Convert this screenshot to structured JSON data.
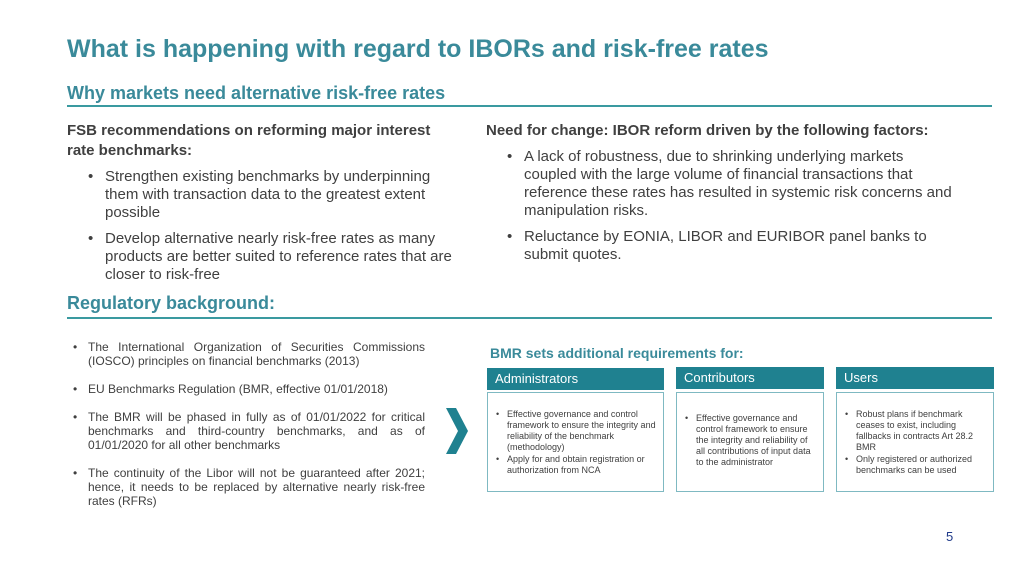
{
  "title": "What is happening with regard to IBORs and risk-free rates",
  "section1": {
    "heading": "Why markets need alternative risk-free rates",
    "left": {
      "heading": "FSB recommendations on reforming major interest rate benchmarks:",
      "bullets": [
        "Strengthen existing benchmarks by underpinning them with transaction data to the greatest extent possible",
        "Develop alternative nearly risk-free rates as many products are better suited to reference rates that are closer to risk-free"
      ]
    },
    "right": {
      "heading": "Need for change: IBOR reform driven by the following factors:",
      "bullets": [
        "A lack of robustness, due to shrinking underlying markets coupled with the large volume of financial transactions that reference these rates has resulted in systemic risk concerns and manipulation risks.",
        "Reluctance by EONIA, LIBOR and EURIBOR panel banks to submit quotes."
      ]
    }
  },
  "section2": {
    "heading": "Regulatory background:",
    "bullets": [
      "The International Organization of Securities Commissions (IOSCO) principles on financial benchmarks (2013)",
      "EU Benchmarks Regulation (BMR, effective 01/01/2018)",
      "The BMR will be phased in fully as of 01/01/2022 for critical benchmarks and third-country benchmarks, and as of 01/01/2020 for all other benchmarks",
      "The continuity of the Libor will not be guaranteed after 2021; hence, it needs to be replaced by alternative nearly risk-free rates (RFRs)"
    ],
    "chevron_icon": "chevron-right-icon",
    "bmr": {
      "heading": "BMR sets additional requirements for:",
      "boxes": [
        {
          "title": "Administrators",
          "bullets": [
            "Effective governance and control framework to ensure the integrity and reliability of the benchmark (methodology)",
            "Apply for and obtain registration or authorization from NCA"
          ]
        },
        {
          "title": "Contributors",
          "bullets": [
            "Effective governance and control framework to ensure the integrity and reliability of all contributions of input data to the administrator"
          ]
        },
        {
          "title": "Users",
          "bullets": [
            "Robust plans if benchmark ceases to exist, including fallbacks in contracts Art 28.2 BMR",
            "Only registered or authorized benchmarks can be used"
          ]
        }
      ]
    }
  },
  "page_number": "5",
  "colors": {
    "accent": "#3a8a9a",
    "box_header": "#1f8190",
    "page_number": "#1f3a8a"
  }
}
